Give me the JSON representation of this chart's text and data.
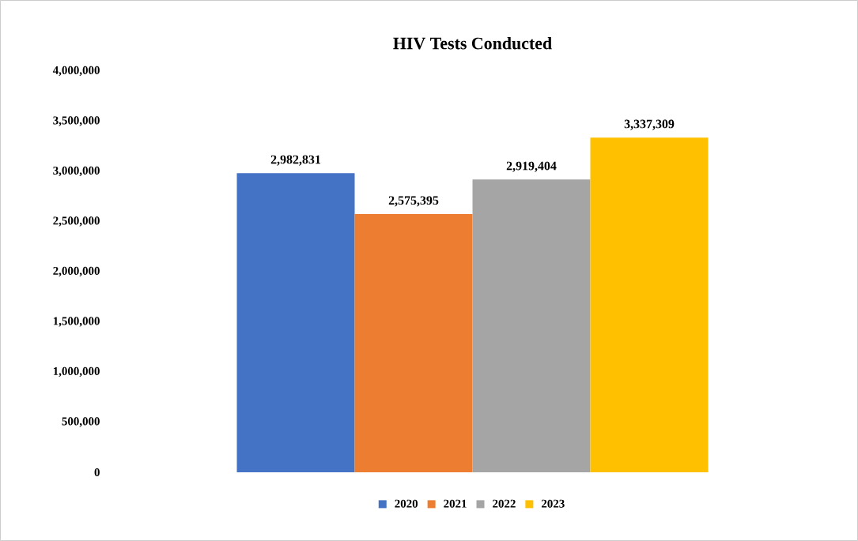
{
  "chart_data": {
    "type": "bar",
    "title": "HIV Tests Conducted",
    "categories": [
      null
    ],
    "series": [
      {
        "name": "2020",
        "color": "#4472c4",
        "values": [
          2982831
        ],
        "value_labels": [
          "2,982,831"
        ]
      },
      {
        "name": "2021",
        "color": "#ed7d31",
        "values": [
          2575395
        ],
        "value_labels": [
          "2,575,395"
        ]
      },
      {
        "name": "2022",
        "color": "#a5a5a5",
        "values": [
          2919404
        ],
        "value_labels": [
          "2,919,404"
        ]
      },
      {
        "name": "2023",
        "color": "#ffc000",
        "values": [
          3337309
        ],
        "value_labels": [
          "3,337,309"
        ]
      }
    ],
    "ylim": [
      0,
      4000000
    ],
    "yticks": [
      0,
      {
        "value": 500000,
        "label": "500,000"
      },
      {
        "value": 1000000,
        "label": "1,000,000"
      },
      {
        "value": 1500000,
        "label": "1,500,000"
      },
      {
        "value": 2000000,
        "label": "2,000,000"
      },
      {
        "value": 2500000,
        "label": "2,500,000"
      },
      {
        "value": 3000000,
        "label": "3,000,000"
      },
      {
        "value": 3500000,
        "label": "3,500,000"
      },
      {
        "value": 4000000,
        "label": "4,000,000"
      }
    ],
    "legend": "bottom",
    "grid": false
  }
}
